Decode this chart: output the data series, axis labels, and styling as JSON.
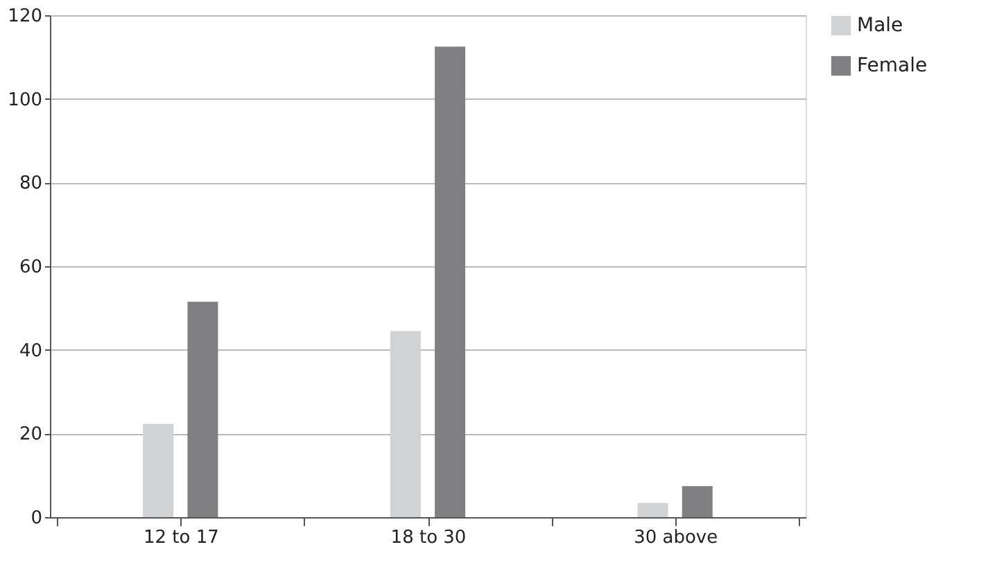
{
  "chart_data": {
    "type": "bar",
    "categories": [
      "12 to 17",
      "18 to 30",
      "30 above"
    ],
    "series": [
      {
        "name": "Male",
        "color": "#d1d2d4",
        "values": [
          22.3,
          44.5,
          3.4
        ]
      },
      {
        "name": "Female",
        "color": "#808083",
        "values": [
          51.5,
          112.5,
          7.4
        ]
      }
    ],
    "ylim": [
      0,
      120
    ],
    "yticks": [
      0,
      20,
      40,
      60,
      80,
      100,
      120
    ],
    "grid": "y",
    "legend": "right"
  }
}
